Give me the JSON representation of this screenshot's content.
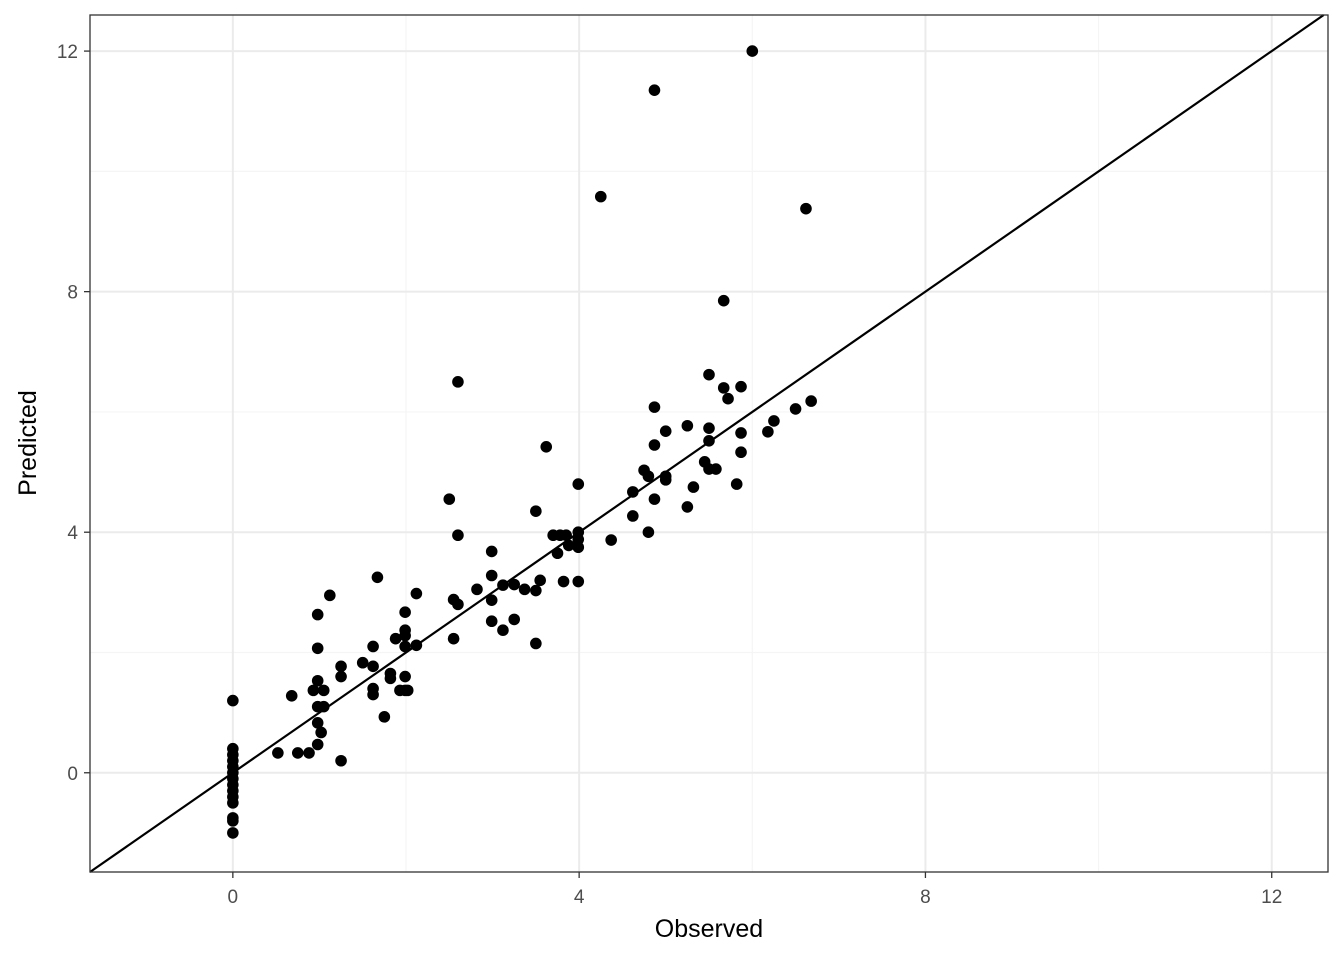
{
  "chart_data": {
    "type": "scatter",
    "title": "",
    "xlabel": "Observed",
    "ylabel": "Predicted",
    "xlim": [
      -1.65,
      12.65
    ],
    "ylim": [
      -1.65,
      12.6
    ],
    "x_ticks": [
      0,
      4,
      8,
      12
    ],
    "y_ticks": [
      0,
      4,
      8,
      12
    ],
    "x_tick_labels": [
      "0",
      "4",
      "8",
      "12"
    ],
    "y_tick_labels": [
      "0",
      "4",
      "8",
      "12"
    ],
    "grid": true,
    "reference_line": {
      "type": "identity",
      "slope": 1,
      "intercept": 0
    },
    "colors": {
      "points": "#000000",
      "line": "#000000",
      "grid_major": "#ebebeb",
      "grid_minor": "#f5f5f5",
      "panel_border": "#333333"
    },
    "points": [
      {
        "x": 0,
        "y": 1.2
      },
      {
        "x": 0,
        "y": 0.4
      },
      {
        "x": 0,
        "y": 0.3
      },
      {
        "x": 0,
        "y": 0.2
      },
      {
        "x": 0,
        "y": 0.1
      },
      {
        "x": 0,
        "y": 0.0
      },
      {
        "x": 0,
        "y": -0.1
      },
      {
        "x": 0,
        "y": -0.2
      },
      {
        "x": 0,
        "y": -0.3
      },
      {
        "x": 0,
        "y": -0.4
      },
      {
        "x": 0,
        "y": -0.5
      },
      {
        "x": 0,
        "y": -0.75
      },
      {
        "x": 0,
        "y": -0.8
      },
      {
        "x": 0,
        "y": -1.0
      },
      {
        "x": 0.52,
        "y": 0.33
      },
      {
        "x": 0.68,
        "y": 1.28
      },
      {
        "x": 0.75,
        "y": 0.33
      },
      {
        "x": 0.88,
        "y": 0.33
      },
      {
        "x": 0.93,
        "y": 1.37
      },
      {
        "x": 0.98,
        "y": 2.07
      },
      {
        "x": 0.98,
        "y": 2.63
      },
      {
        "x": 0.98,
        "y": 1.53
      },
      {
        "x": 0.98,
        "y": 1.1
      },
      {
        "x": 0.98,
        "y": 0.83
      },
      {
        "x": 0.98,
        "y": 0.47
      },
      {
        "x": 1.02,
        "y": 0.67
      },
      {
        "x": 1.05,
        "y": 1.37
      },
      {
        "x": 1.05,
        "y": 1.1
      },
      {
        "x": 1.12,
        "y": 2.95
      },
      {
        "x": 1.25,
        "y": 1.77
      },
      {
        "x": 1.25,
        "y": 1.6
      },
      {
        "x": 1.25,
        "y": 0.2
      },
      {
        "x": 1.5,
        "y": 1.83
      },
      {
        "x": 1.62,
        "y": 2.1
      },
      {
        "x": 1.62,
        "y": 1.77
      },
      {
        "x": 1.62,
        "y": 1.4
      },
      {
        "x": 1.62,
        "y": 1.3
      },
      {
        "x": 1.67,
        "y": 3.25
      },
      {
        "x": 1.75,
        "y": 0.93
      },
      {
        "x": 1.82,
        "y": 1.65
      },
      {
        "x": 1.82,
        "y": 1.57
      },
      {
        "x": 1.88,
        "y": 2.23
      },
      {
        "x": 1.93,
        "y": 1.37
      },
      {
        "x": 1.99,
        "y": 2.67
      },
      {
        "x": 1.99,
        "y": 2.37
      },
      {
        "x": 1.99,
        "y": 2.28
      },
      {
        "x": 1.99,
        "y": 2.1
      },
      {
        "x": 1.99,
        "y": 1.6
      },
      {
        "x": 1.99,
        "y": 1.37
      },
      {
        "x": 2.02,
        "y": 1.37
      },
      {
        "x": 2.12,
        "y": 2.12
      },
      {
        "x": 2.12,
        "y": 2.98
      },
      {
        "x": 2.5,
        "y": 4.55
      },
      {
        "x": 2.55,
        "y": 2.88
      },
      {
        "x": 2.55,
        "y": 2.23
      },
      {
        "x": 2.6,
        "y": 6.5
      },
      {
        "x": 2.6,
        "y": 3.95
      },
      {
        "x": 2.6,
        "y": 2.8
      },
      {
        "x": 2.82,
        "y": 3.05
      },
      {
        "x": 2.99,
        "y": 3.68
      },
      {
        "x": 2.99,
        "y": 3.28
      },
      {
        "x": 2.99,
        "y": 2.87
      },
      {
        "x": 2.99,
        "y": 2.52
      },
      {
        "x": 3.12,
        "y": 3.12
      },
      {
        "x": 3.12,
        "y": 2.37
      },
      {
        "x": 3.25,
        "y": 3.13
      },
      {
        "x": 3.25,
        "y": 2.55
      },
      {
        "x": 3.37,
        "y": 3.05
      },
      {
        "x": 3.5,
        "y": 4.35
      },
      {
        "x": 3.5,
        "y": 3.03
      },
      {
        "x": 3.5,
        "y": 2.15
      },
      {
        "x": 3.55,
        "y": 3.2
      },
      {
        "x": 3.62,
        "y": 5.42
      },
      {
        "x": 3.7,
        "y": 3.95
      },
      {
        "x": 3.75,
        "y": 3.65
      },
      {
        "x": 3.78,
        "y": 3.95
      },
      {
        "x": 3.82,
        "y": 3.18
      },
      {
        "x": 3.85,
        "y": 3.95
      },
      {
        "x": 3.88,
        "y": 3.78
      },
      {
        "x": 3.99,
        "y": 4.8
      },
      {
        "x": 3.99,
        "y": 4.0
      },
      {
        "x": 3.99,
        "y": 3.88
      },
      {
        "x": 3.99,
        "y": 3.75
      },
      {
        "x": 3.99,
        "y": 3.18
      },
      {
        "x": 4.25,
        "y": 9.58
      },
      {
        "x": 4.37,
        "y": 3.87
      },
      {
        "x": 4.62,
        "y": 4.67
      },
      {
        "x": 4.62,
        "y": 4.27
      },
      {
        "x": 4.75,
        "y": 5.03
      },
      {
        "x": 4.8,
        "y": 4.93
      },
      {
        "x": 4.8,
        "y": 4.0
      },
      {
        "x": 4.87,
        "y": 11.35
      },
      {
        "x": 4.87,
        "y": 6.08
      },
      {
        "x": 4.87,
        "y": 5.45
      },
      {
        "x": 4.87,
        "y": 4.55
      },
      {
        "x": 5.0,
        "y": 5.68
      },
      {
        "x": 5.0,
        "y": 4.93
      },
      {
        "x": 5.0,
        "y": 4.87
      },
      {
        "x": 5.25,
        "y": 5.77
      },
      {
        "x": 5.25,
        "y": 4.42
      },
      {
        "x": 5.32,
        "y": 4.75
      },
      {
        "x": 5.45,
        "y": 5.17
      },
      {
        "x": 5.5,
        "y": 6.62
      },
      {
        "x": 5.5,
        "y": 5.73
      },
      {
        "x": 5.5,
        "y": 5.52
      },
      {
        "x": 5.5,
        "y": 5.05
      },
      {
        "x": 5.58,
        "y": 5.05
      },
      {
        "x": 5.67,
        "y": 7.85
      },
      {
        "x": 5.67,
        "y": 6.4
      },
      {
        "x": 5.72,
        "y": 6.22
      },
      {
        "x": 5.82,
        "y": 4.8
      },
      {
        "x": 5.87,
        "y": 6.42
      },
      {
        "x": 5.87,
        "y": 5.65
      },
      {
        "x": 5.87,
        "y": 5.33
      },
      {
        "x": 6.0,
        "y": 12.0
      },
      {
        "x": 6.18,
        "y": 5.67
      },
      {
        "x": 6.25,
        "y": 5.85
      },
      {
        "x": 6.5,
        "y": 6.05
      },
      {
        "x": 6.62,
        "y": 9.38
      },
      {
        "x": 6.68,
        "y": 6.18
      }
    ]
  }
}
